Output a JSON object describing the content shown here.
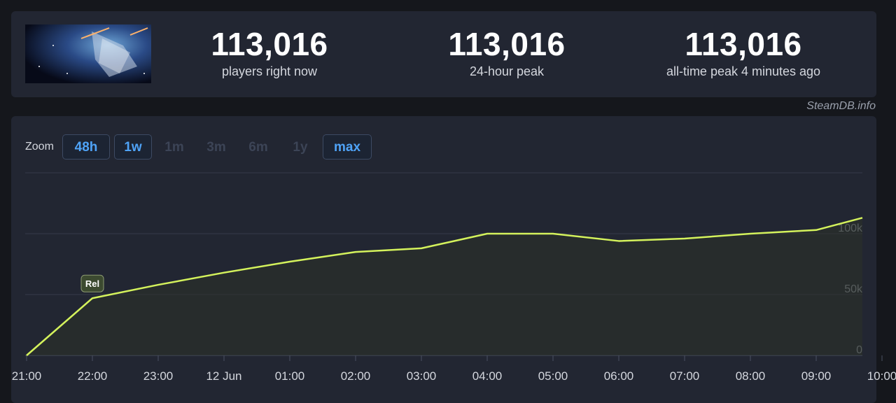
{
  "stats": {
    "current": {
      "value": "113,016",
      "label": "players right now"
    },
    "peak24": {
      "value": "113,016",
      "label": "24-hour peak"
    },
    "alltime": {
      "value": "113,016",
      "label": "all-time peak 4 minutes ago"
    }
  },
  "credit": "SteamDB.info",
  "zoom": {
    "label": "Zoom",
    "options": [
      {
        "label": "48h",
        "enabled": true
      },
      {
        "label": "1w",
        "enabled": true
      },
      {
        "label": "1m",
        "enabled": false
      },
      {
        "label": "3m",
        "enabled": false
      },
      {
        "label": "6m",
        "enabled": false
      },
      {
        "label": "1y",
        "enabled": false
      },
      {
        "label": "max",
        "enabled": true
      }
    ]
  },
  "chart_data": {
    "type": "line",
    "title": "",
    "xlabel": "",
    "ylabel": "",
    "ylim": [
      0,
      150000
    ],
    "grid": true,
    "x_tick_labels": [
      "21:00",
      "22:00",
      "23:00",
      "12 Jun",
      "01:00",
      "02:00",
      "03:00",
      "04:00",
      "05:00",
      "06:00",
      "07:00",
      "08:00",
      "09:00",
      "10:00"
    ],
    "y_tick_labels": [
      {
        "value": 0,
        "label": "0"
      },
      {
        "value": 50000,
        "label": "50k"
      },
      {
        "value": 100000,
        "label": "100k"
      }
    ],
    "series": [
      {
        "color": "#d4f25c",
        "x": [
          0,
          1,
          2,
          3,
          4,
          5,
          6,
          7,
          8,
          9,
          10,
          11,
          12,
          13.2
        ],
        "values": [
          0,
          47000,
          58000,
          68000,
          77000,
          85000,
          88000,
          100000,
          100000,
          94000,
          96000,
          100000,
          103000,
          113016
        ]
      }
    ],
    "annotations": [
      {
        "x": 1,
        "label": "Rel"
      }
    ]
  }
}
